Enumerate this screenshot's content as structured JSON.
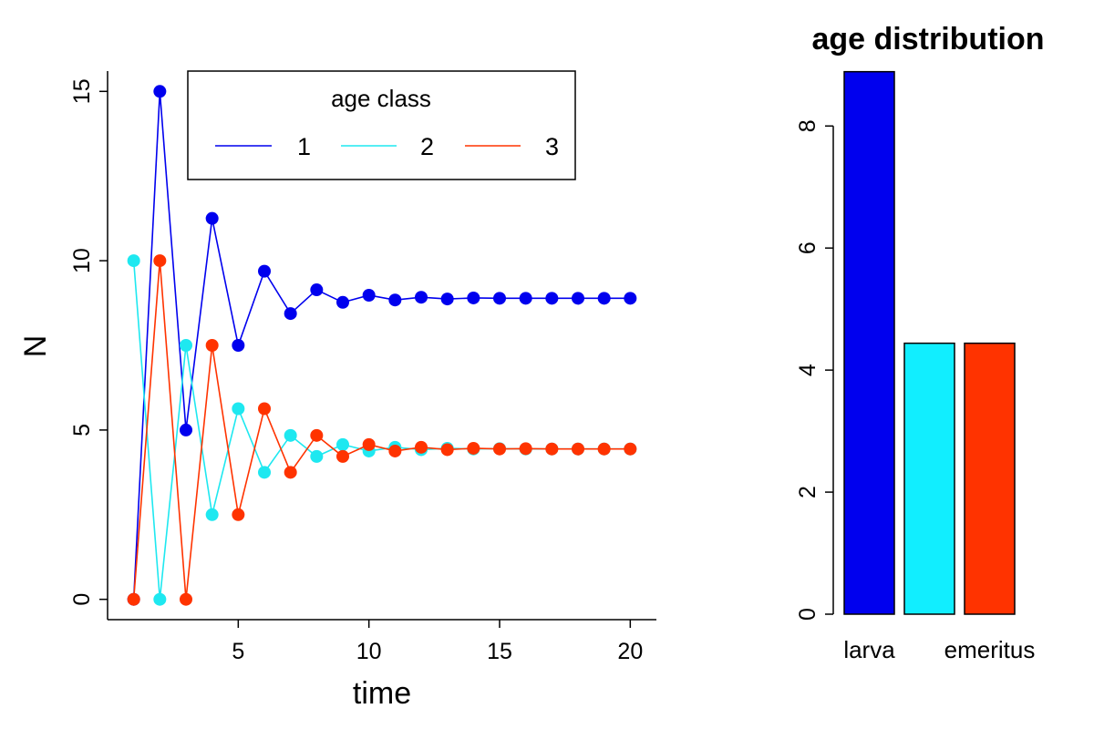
{
  "chart_data": [
    {
      "type": "line",
      "xlabel": "time",
      "ylabel": "N",
      "xlim": [
        0,
        21
      ],
      "ylim": [
        -0.6,
        15.6
      ],
      "x_ticks": [
        5,
        10,
        15,
        20
      ],
      "y_ticks": [
        0,
        5,
        10,
        15
      ],
      "x": [
        1,
        2,
        3,
        4,
        5,
        6,
        7,
        8,
        9,
        10,
        11,
        12,
        13,
        14,
        15,
        16,
        17,
        18,
        19,
        20
      ],
      "legend": {
        "title": "age class",
        "placement": "top-right",
        "entries": [
          "1",
          "2",
          "3"
        ]
      },
      "series": [
        {
          "name": "1",
          "color": "#0000ee",
          "values": [
            0,
            15.0,
            5.0,
            11.25,
            7.5,
            9.69,
            8.44,
            9.14,
            8.77,
            8.98,
            8.84,
            8.92,
            8.87,
            8.9,
            8.89,
            8.89,
            8.89,
            8.89,
            8.89,
            8.89
          ]
        },
        {
          "name": "2",
          "color": "#1ee8f0",
          "values": [
            10.0,
            0,
            7.5,
            2.5,
            5.63,
            3.75,
            4.84,
            4.22,
            4.57,
            4.38,
            4.49,
            4.42,
            4.46,
            4.44,
            4.45,
            4.44,
            4.44,
            4.44,
            4.44,
            4.44
          ]
        },
        {
          "name": "3",
          "color": "#ff3300",
          "values": [
            0,
            10.0,
            0,
            7.5,
            2.5,
            5.63,
            3.75,
            4.84,
            4.22,
            4.57,
            4.38,
            4.49,
            4.42,
            4.46,
            4.44,
            4.45,
            4.44,
            4.44,
            4.44,
            4.44
          ]
        }
      ]
    },
    {
      "type": "bar",
      "title": "age distribution",
      "ylim": [
        0,
        8.9
      ],
      "y_ticks": [
        0,
        2,
        4,
        6,
        8
      ],
      "categories": [
        "larva",
        "",
        "emeritus"
      ],
      "values": [
        8.89,
        4.44,
        4.44
      ],
      "colors": [
        "#0000ee",
        "#11eeff",
        "#ff3300"
      ]
    }
  ]
}
